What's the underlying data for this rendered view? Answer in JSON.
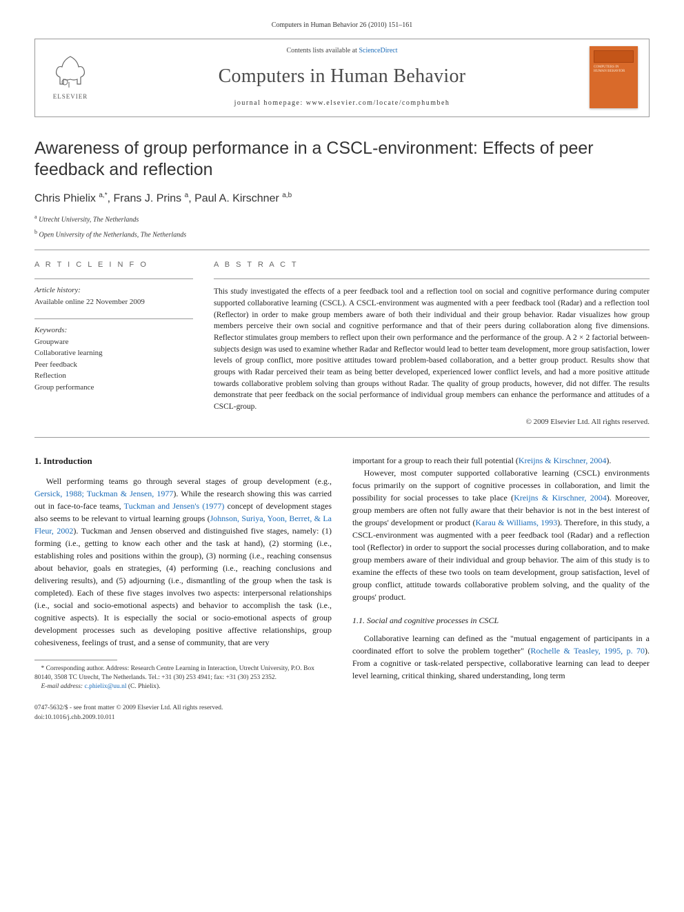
{
  "citation": "Computers in Human Behavior 26 (2010) 151–161",
  "header": {
    "contents_prefix": "Contents lists available at ",
    "contents_link": "ScienceDirect",
    "journal": "Computers in Human Behavior",
    "homepage_prefix": "journal homepage: ",
    "homepage_url": "www.elsevier.com/locate/comphumbeh",
    "publisher": "ELSEVIER"
  },
  "title": "Awareness of group performance in a CSCL-environment: Effects of peer feedback and reflection",
  "authors_html": "Chris Phielix <sup>a,*</sup>, Frans J. Prins <sup>a</sup>, Paul A. Kirschner <sup>a,b</sup>",
  "affiliations": [
    {
      "sup": "a",
      "text": "Utrecht University, The Netherlands"
    },
    {
      "sup": "b",
      "text": "Open University of the Netherlands, The Netherlands"
    }
  ],
  "article_info": {
    "label": "A R T I C L E   I N F O",
    "history_label": "Article history:",
    "history": "Available online 22 November 2009",
    "keywords_label": "Keywords:",
    "keywords": [
      "Groupware",
      "Collaborative learning",
      "Peer feedback",
      "Reflection",
      "Group performance"
    ]
  },
  "abstract": {
    "label": "A B S T R A C T",
    "text": "This study investigated the effects of a peer feedback tool and a reflection tool on social and cognitive performance during computer supported collaborative learning (CSCL). A CSCL-environment was augmented with a peer feedback tool (Radar) and a reflection tool (Reflector) in order to make group members aware of both their individual and their group behavior. Radar visualizes how group members perceive their own social and cognitive performance and that of their peers during collaboration along five dimensions. Reflector stimulates group members to reflect upon their own performance and the performance of the group. A 2 × 2 factorial between-subjects design was used to examine whether Radar and Reflector would lead to better team development, more group satisfaction, lower levels of group conflict, more positive attitudes toward problem-based collaboration, and a better group product. Results show that groups with Radar perceived their team as being better developed, experienced lower conflict levels, and had a more positive attitude towards collaborative problem solving than groups without Radar. The quality of group products, however, did not differ. The results demonstrate that peer feedback on the social performance of individual group members can enhance the performance and attitudes of a CSCL-group.",
    "copyright": "© 2009 Elsevier Ltd. All rights reserved."
  },
  "body": {
    "section1_heading": "1. Introduction",
    "col1_p1_a": "Well performing teams go through several stages of group development (e.g., ",
    "col1_p1_link1": "Gersick, 1988; Tuckman & Jensen, 1977",
    "col1_p1_b": "). While the research showing this was carried out in face-to-face teams, ",
    "col1_p1_link2": "Tuckman and Jensen's (1977)",
    "col1_p1_c": " concept of development stages also seems to be relevant to virtual learning groups (",
    "col1_p1_link3": "Johnson, Suriya, Yoon, Berret, & La Fleur, 2002",
    "col1_p1_d": "). Tuckman and Jensen observed and distinguished five stages, namely: (1) forming (i.e., getting to know each other and the task at hand), (2) storming (i.e., establishing roles and positions within the group), (3) norming (i.e., reaching consensus about behavior, goals en strategies, (4) performing (i.e., reaching conclusions and delivering results), and (5) adjourning (i.e., dismantling of the group when the task is completed). Each of these five stages involves two aspects: interpersonal relationships (i.e., social and socio-emotional aspects) and behavior to accomplish the task (i.e., cognitive aspects). It is especially the social or socio-emotional aspects of group development processes such as developing positive affective relationships, group cohesiveness, feelings of trust, and a sense of community, that are very",
    "col2_p1_a": "important for a group to reach their full potential (",
    "col2_p1_link1": "Kreijns & Kirschner, 2004",
    "col2_p1_b": ").",
    "col2_p2_a": "However, most computer supported collaborative learning (CSCL) environments focus primarily on the support of cognitive processes in collaboration, and limit the possibility for social processes to take place (",
    "col2_p2_link1": "Kreijns & Kirschner, 2004",
    "col2_p2_b": "). Moreover, group members are often not fully aware that their behavior is not in the best interest of the groups' development or product (",
    "col2_p2_link2": "Karau & Williams, 1993",
    "col2_p2_c": "). Therefore, in this study, a CSCL-environment was augmented with a peer feedback tool (Radar) and a reflection tool (Reflector) in order to support the social processes during collaboration, and to make group members aware of their individual and group behavior. The aim of this study is to examine the effects of these two tools on team development, group satisfaction, level of group conflict, attitude towards collaborative problem solving, and the quality of the groups' product.",
    "section11_heading": "1.1. Social and cognitive processes in CSCL",
    "col2_p3_a": "Collaborative learning can defined as the \"mutual engagement of participants in a coordinated effort to solve the problem together\" (",
    "col2_p3_link1": "Rochelle & Teasley, 1995, p. 70",
    "col2_p3_b": "). From a cognitive or task-related perspective, collaborative learning can lead to deeper level learning, critical thinking, shared understanding, long term"
  },
  "footnote": {
    "corr_a": "* Corresponding author. Address: Research Centre Learning in Interaction, Utrecht University, P.O. Box 80140, 3508 TC Utrecht, The Netherlands. Tel.: +31 (30) 253 4941; fax: +31 (30) 253 2352.",
    "email_label": "E-mail address: ",
    "email": "c.phielix@uu.nl",
    "email_suffix": " (C. Phielix)."
  },
  "footer": {
    "line1": "0747-5632/$ - see front matter © 2009 Elsevier Ltd. All rights reserved.",
    "line2": "doi:10.1016/j.chb.2009.10.011"
  },
  "colors": {
    "link": "#1a6bb8",
    "cover": "#d96a2a",
    "border": "#999999"
  }
}
